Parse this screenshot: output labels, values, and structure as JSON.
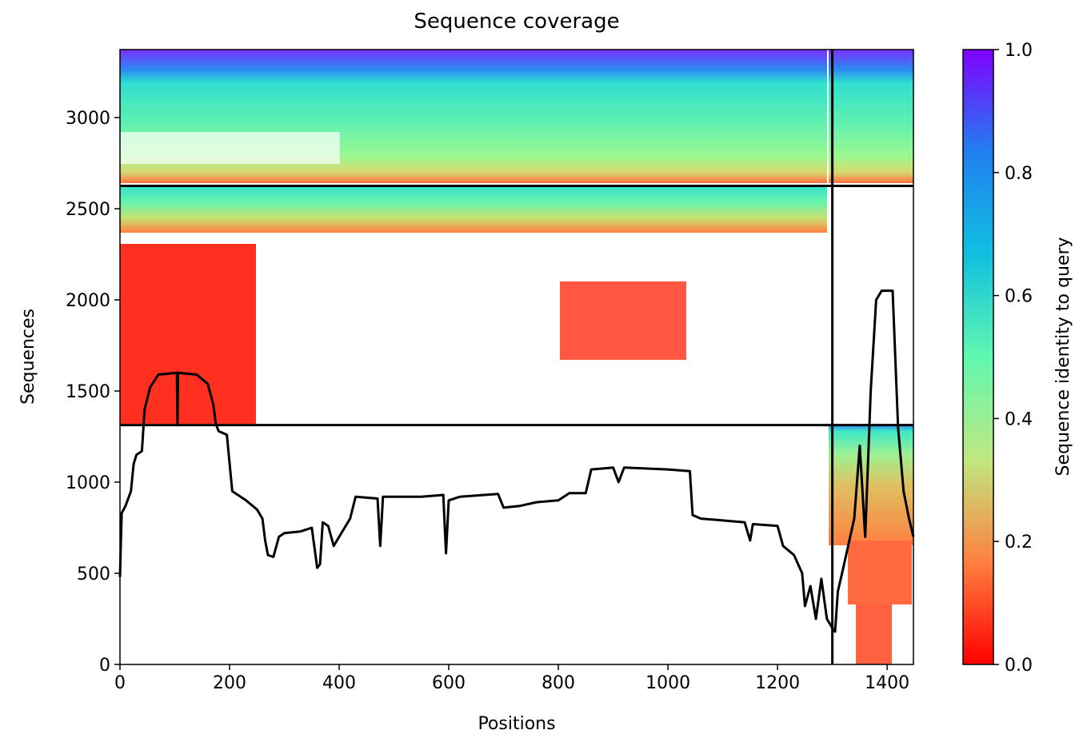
{
  "chart_data": {
    "type": "line",
    "title": "Sequence coverage",
    "x_label": "Positions",
    "y_label": "Sequences",
    "color": "#000000",
    "x": [
      0,
      3,
      10,
      20,
      25,
      30,
      40,
      45,
      55,
      70,
      104,
      105,
      106,
      140,
      160,
      170,
      175,
      180,
      195,
      205,
      230,
      250,
      260,
      265,
      270,
      280,
      290,
      300,
      330,
      350,
      360,
      365,
      370,
      380,
      390,
      400,
      420,
      430,
      470,
      475,
      480,
      520,
      550,
      590,
      595,
      600,
      620,
      690,
      700,
      730,
      760,
      800,
      820,
      850,
      860,
      900,
      910,
      920,
      1000,
      1040,
      1045,
      1060,
      1100,
      1140,
      1150,
      1155,
      1200,
      1210,
      1230,
      1245,
      1250,
      1260,
      1270,
      1280,
      1290,
      1300,
      1305,
      1310,
      1320,
      1340,
      1350,
      1360,
      1370,
      1380,
      1390,
      1410,
      1420,
      1430,
      1440,
      1448
    ],
    "values": [
      480,
      830,
      870,
      950,
      1100,
      1150,
      1170,
      1400,
      1520,
      1590,
      1600,
      1313,
      1600,
      1590,
      1540,
      1430,
      1320,
      1280,
      1260,
      950,
      900,
      850,
      800,
      680,
      600,
      590,
      700,
      720,
      730,
      750,
      530,
      550,
      780,
      760,
      650,
      700,
      800,
      920,
      910,
      650,
      920,
      920,
      920,
      930,
      610,
      900,
      920,
      935,
      860,
      870,
      890,
      900,
      940,
      940,
      1070,
      1080,
      1000,
      1080,
      1070,
      1060,
      820,
      800,
      790,
      780,
      680,
      770,
      760,
      650,
      600,
      500,
      320,
      430,
      250,
      470,
      250,
      200,
      180,
      400,
      530,
      800,
      1200,
      700,
      1500,
      2000,
      2050,
      2050,
      1300,
      950,
      800,
      700
    ],
    "boundaries_x": [
      1300
    ],
    "boundaries_y": [
      1313,
      2625
    ],
    "xlim": [
      0,
      1448
    ],
    "ylim": [
      0,
      3373
    ],
    "xticks": [
      0,
      200,
      400,
      600,
      800,
      1000,
      1200,
      1400
    ],
    "yticks": [
      0,
      500,
      1000,
      1500,
      2000,
      2500,
      3000
    ],
    "colorbar": {
      "label": "Sequence identity to query",
      "lim": [
        0,
        1
      ],
      "colors": [
        "#ff0000",
        "#ff8040",
        "#c0e880",
        "#60f8b0",
        "#10c0e0",
        "#2080f0",
        "#8000ff"
      ],
      "ticks": [
        {
          "value": 0,
          "label": "0.0"
        },
        {
          "value": 0.2,
          "label": "0.2"
        },
        {
          "value": 0.4,
          "label": "0.4"
        },
        {
          "value": 0.6,
          "label": "0.6"
        },
        {
          "value": 0.8,
          "label": "0.8"
        },
        {
          "value": 1,
          "label": "1.0"
        }
      ]
    }
  }
}
